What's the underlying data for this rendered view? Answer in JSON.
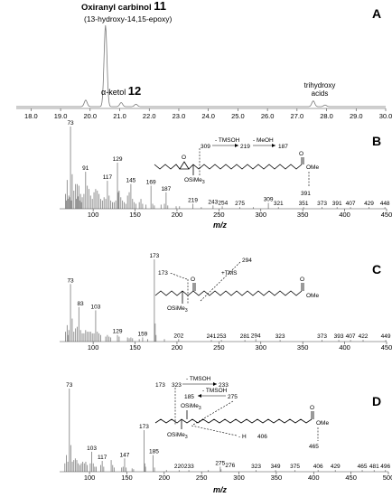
{
  "colors": {
    "ink": "#000000",
    "trace": "#7a7a7a",
    "bars": "#8a8a8a",
    "axis": "#444444"
  },
  "chart_data": [
    {
      "type": "line",
      "panel": "A",
      "xlim": [
        17.5,
        30.0
      ],
      "xticks": [
        "18.0",
        "19.0",
        "20.0",
        "21.0",
        "22.0",
        "23.0",
        "24.0",
        "25.0",
        "26.0",
        "27.0",
        "28.0",
        "29.0",
        "30.0"
      ],
      "annotations": {
        "main_name": "Oxiranyl carbinol ",
        "main_num": "11",
        "main_sub": "(13-hydroxy-14,15-epoxy)",
        "ketol_name": "α-ketol ",
        "ketol_num": "12",
        "tri_line1": "trihydroxy",
        "tri_line2": "acids"
      },
      "peaks": [
        {
          "x": 19.85,
          "h": 0.08
        },
        {
          "x": 20.52,
          "h": 1.0
        },
        {
          "x": 21.05,
          "h": 0.05
        },
        {
          "x": 21.55,
          "h": 0.03
        },
        {
          "x": 27.55,
          "h": 0.07
        },
        {
          "x": 27.95,
          "h": 0.02
        }
      ]
    },
    {
      "type": "bar",
      "panel": "B",
      "xlim": [
        60,
        450
      ],
      "xticks": [
        "100",
        "150",
        "200",
        "250",
        "300",
        "350",
        "400",
        "450"
      ],
      "xlabel": "m/z",
      "labels": [
        {
          "mz": 73,
          "t": "73"
        },
        {
          "mz": 91,
          "t": "91"
        },
        {
          "mz": 117,
          "t": "117"
        },
        {
          "mz": 129,
          "t": "129"
        },
        {
          "mz": 145,
          "t": "145"
        },
        {
          "mz": 169,
          "t": "169"
        },
        {
          "mz": 187,
          "t": "187"
        },
        {
          "mz": 219,
          "t": "219"
        },
        {
          "mz": 243,
          "t": "243"
        },
        {
          "mz": 254,
          "t": "254"
        },
        {
          "mz": 275,
          "t": "275"
        },
        {
          "mz": 309,
          "t": "309"
        },
        {
          "mz": 321,
          "t": "321"
        },
        {
          "mz": 351,
          "t": "351"
        },
        {
          "mz": 373,
          "t": "373"
        },
        {
          "mz": 391,
          "t": "391"
        },
        {
          "mz": 407,
          "t": "407"
        },
        {
          "mz": 429,
          "t": "429"
        },
        {
          "mz": 448,
          "t": "448"
        }
      ],
      "peaks": [
        [
          67,
          0.18
        ],
        [
          68,
          0.1
        ],
        [
          69,
          0.35
        ],
        [
          70,
          0.12
        ],
        [
          71,
          0.16
        ],
        [
          72,
          0.14
        ],
        [
          73,
          1.0
        ],
        [
          74,
          0.1
        ],
        [
          75,
          0.42
        ],
        [
          77,
          0.22
        ],
        [
          79,
          0.3
        ],
        [
          80,
          0.12
        ],
        [
          81,
          0.3
        ],
        [
          82,
          0.15
        ],
        [
          83,
          0.28
        ],
        [
          84,
          0.1
        ],
        [
          85,
          0.18
        ],
        [
          86,
          0.08
        ],
        [
          87,
          0.14
        ],
        [
          89,
          0.18
        ],
        [
          91,
          0.45
        ],
        [
          93,
          0.28
        ],
        [
          95,
          0.24
        ],
        [
          97,
          0.16
        ],
        [
          99,
          0.12
        ],
        [
          101,
          0.2
        ],
        [
          103,
          0.24
        ],
        [
          105,
          0.22
        ],
        [
          107,
          0.18
        ],
        [
          109,
          0.12
        ],
        [
          111,
          0.1
        ],
        [
          113,
          0.14
        ],
        [
          115,
          0.12
        ],
        [
          117,
          0.34
        ],
        [
          119,
          0.16
        ],
        [
          121,
          0.1
        ],
        [
          123,
          0.08
        ],
        [
          125,
          0.08
        ],
        [
          127,
          0.1
        ],
        [
          129,
          0.56
        ],
        [
          130,
          0.2
        ],
        [
          131,
          0.22
        ],
        [
          133,
          0.14
        ],
        [
          135,
          0.1
        ],
        [
          137,
          0.08
        ],
        [
          139,
          0.06
        ],
        [
          141,
          0.16
        ],
        [
          143,
          0.2
        ],
        [
          145,
          0.3
        ],
        [
          147,
          0.12
        ],
        [
          149,
          0.08
        ],
        [
          151,
          0.06
        ],
        [
          155,
          0.08
        ],
        [
          157,
          0.12
        ],
        [
          159,
          0.06
        ],
        [
          163,
          0.05
        ],
        [
          169,
          0.28
        ],
        [
          171,
          0.06
        ],
        [
          173,
          0.04
        ],
        [
          181,
          0.05
        ],
        [
          185,
          0.06
        ],
        [
          187,
          0.2
        ],
        [
          189,
          0.04
        ],
        [
          199,
          0.03
        ],
        [
          203,
          0.03
        ],
        [
          219,
          0.06
        ],
        [
          229,
          0.02
        ],
        [
          243,
          0.04
        ],
        [
          254,
          0.03
        ],
        [
          275,
          0.02
        ],
        [
          291,
          0.02
        ],
        [
          309,
          0.07
        ],
        [
          321,
          0.02
        ],
        [
          351,
          0.02
        ],
        [
          373,
          0.02
        ],
        [
          391,
          0.02
        ],
        [
          407,
          0.02
        ],
        [
          429,
          0.02
        ],
        [
          448,
          0.02
        ]
      ]
    },
    {
      "type": "bar",
      "panel": "C",
      "xlim": [
        60,
        450
      ],
      "xticks": [
        "100",
        "150",
        "200",
        "250",
        "300",
        "350",
        "400",
        "450"
      ],
      "labels": [
        {
          "mz": 73,
          "t": "73"
        },
        {
          "mz": 83,
          "t": "83"
        },
        {
          "mz": 103,
          "t": "103"
        },
        {
          "mz": 129,
          "t": "129"
        },
        {
          "mz": 159,
          "t": "159"
        },
        {
          "mz": 173,
          "t": "173"
        },
        {
          "mz": 202,
          "t": "202"
        },
        {
          "mz": 241,
          "t": "241"
        },
        {
          "mz": 253,
          "t": "253"
        },
        {
          "mz": 281,
          "t": "281"
        },
        {
          "mz": 294,
          "t": "294"
        },
        {
          "mz": 323,
          "t": "323"
        },
        {
          "mz": 373,
          "t": "373"
        },
        {
          "mz": 393,
          "t": "393"
        },
        {
          "mz": 407,
          "t": "407"
        },
        {
          "mz": 422,
          "t": "422"
        },
        {
          "mz": 449,
          "t": "449"
        }
      ],
      "peaks": [
        [
          67,
          0.12
        ],
        [
          69,
          0.2
        ],
        [
          70,
          0.08
        ],
        [
          71,
          0.14
        ],
        [
          73,
          0.7
        ],
        [
          75,
          0.28
        ],
        [
          77,
          0.12
        ],
        [
          79,
          0.16
        ],
        [
          81,
          0.18
        ],
        [
          83,
          0.42
        ],
        [
          85,
          0.14
        ],
        [
          87,
          0.1
        ],
        [
          89,
          0.1
        ],
        [
          91,
          0.14
        ],
        [
          93,
          0.12
        ],
        [
          95,
          0.12
        ],
        [
          97,
          0.12
        ],
        [
          99,
          0.1
        ],
        [
          101,
          0.1
        ],
        [
          103,
          0.38
        ],
        [
          105,
          0.12
        ],
        [
          107,
          0.1
        ],
        [
          109,
          0.08
        ],
        [
          115,
          0.06
        ],
        [
          117,
          0.08
        ],
        [
          119,
          0.06
        ],
        [
          121,
          0.05
        ],
        [
          129,
          0.08
        ],
        [
          131,
          0.06
        ],
        [
          141,
          0.05
        ],
        [
          143,
          0.04
        ],
        [
          145,
          0.05
        ],
        [
          147,
          0.04
        ],
        [
          155,
          0.03
        ],
        [
          159,
          0.05
        ],
        [
          165,
          0.03
        ],
        [
          173,
          1.0
        ],
        [
          174,
          0.22
        ],
        [
          175,
          0.08
        ],
        [
          185,
          0.03
        ],
        [
          202,
          0.03
        ],
        [
          241,
          0.02
        ],
        [
          253,
          0.02
        ],
        [
          281,
          0.02
        ],
        [
          294,
          0.03
        ],
        [
          323,
          0.02
        ],
        [
          373,
          0.02
        ],
        [
          393,
          0.02
        ],
        [
          407,
          0.02
        ],
        [
          422,
          0.02
        ],
        [
          449,
          0.02
        ]
      ]
    },
    {
      "type": "bar",
      "panel": "D",
      "xlim": [
        60,
        500
      ],
      "xticks": [
        "100",
        "150",
        "200",
        "250",
        "300",
        "350",
        "400",
        "450",
        "500"
      ],
      "xlabel": "m/z",
      "labels": [
        {
          "mz": 73,
          "t": "73"
        },
        {
          "mz": 103,
          "t": "103"
        },
        {
          "mz": 117,
          "t": "117"
        },
        {
          "mz": 147,
          "t": "147"
        },
        {
          "mz": 173,
          "t": "173"
        },
        {
          "mz": 185,
          "t": "185"
        },
        {
          "mz": 220,
          "t": "220"
        },
        {
          "mz": 233,
          "t": "233"
        },
        {
          "mz": 275,
          "t": "275"
        },
        {
          "mz": 276,
          "t": "276"
        },
        {
          "mz": 323,
          "t": "323"
        },
        {
          "mz": 349,
          "t": "349"
        },
        {
          "mz": 375,
          "t": "375"
        },
        {
          "mz": 406,
          "t": "406"
        },
        {
          "mz": 429,
          "t": "429"
        },
        {
          "mz": 465,
          "t": "465"
        },
        {
          "mz": 481,
          "t": "481"
        },
        {
          "mz": 496,
          "t": "496"
        }
      ],
      "peaks": [
        [
          67,
          0.1
        ],
        [
          69,
          0.2
        ],
        [
          71,
          0.12
        ],
        [
          73,
          1.0
        ],
        [
          75,
          0.32
        ],
        [
          77,
          0.12
        ],
        [
          79,
          0.14
        ],
        [
          81,
          0.16
        ],
        [
          83,
          0.14
        ],
        [
          85,
          0.1
        ],
        [
          87,
          0.08
        ],
        [
          89,
          0.1
        ],
        [
          91,
          0.12
        ],
        [
          93,
          0.1
        ],
        [
          95,
          0.12
        ],
        [
          97,
          0.08
        ],
        [
          101,
          0.1
        ],
        [
          103,
          0.24
        ],
        [
          105,
          0.1
        ],
        [
          107,
          0.06
        ],
        [
          109,
          0.06
        ],
        [
          115,
          0.08
        ],
        [
          117,
          0.13
        ],
        [
          119,
          0.06
        ],
        [
          129,
          0.14
        ],
        [
          131,
          0.08
        ],
        [
          133,
          0.05
        ],
        [
          143,
          0.05
        ],
        [
          145,
          0.06
        ],
        [
          147,
          0.16
        ],
        [
          149,
          0.05
        ],
        [
          157,
          0.04
        ],
        [
          159,
          0.03
        ],
        [
          173,
          0.5
        ],
        [
          174,
          0.1
        ],
        [
          175,
          0.06
        ],
        [
          185,
          0.2
        ],
        [
          187,
          0.05
        ],
        [
          203,
          0.02
        ],
        [
          220,
          0.02
        ],
        [
          233,
          0.02
        ],
        [
          259,
          0.02
        ],
        [
          275,
          0.06
        ],
        [
          276,
          0.03
        ],
        [
          323,
          0.02
        ],
        [
          349,
          0.02
        ],
        [
          375,
          0.02
        ],
        [
          406,
          0.02
        ],
        [
          429,
          0.02
        ],
        [
          465,
          0.02
        ],
        [
          481,
          0.02
        ],
        [
          496,
          0.02
        ]
      ]
    }
  ],
  "structures": {
    "B": {
      "tmsoh": "- TMSOH",
      "meoh": "- MeOH",
      "f309": "309",
      "f219": "219",
      "f187": "187",
      "f391": "391",
      "osi": "OSiMe",
      "sub3": "3",
      "ome": "OMe"
    },
    "C": {
      "f173": "173",
      "f294": "294",
      "tms": "+TMS",
      "osi": "OSiMe",
      "sub3": "3",
      "ome": "OMe"
    },
    "D": {
      "f173": "173",
      "f323": "323",
      "f233": "233",
      "tmsoh1": "- TMSOH",
      "f185": "185",
      "tmsoh2": "- TMSOH",
      "f275": "275",
      "osi1": "OSiMe",
      "osi2": "OSiMe",
      "sub3": "3",
      "h": "- H",
      "f406": "406",
      "f465": "465",
      "ome": "OMe"
    }
  }
}
